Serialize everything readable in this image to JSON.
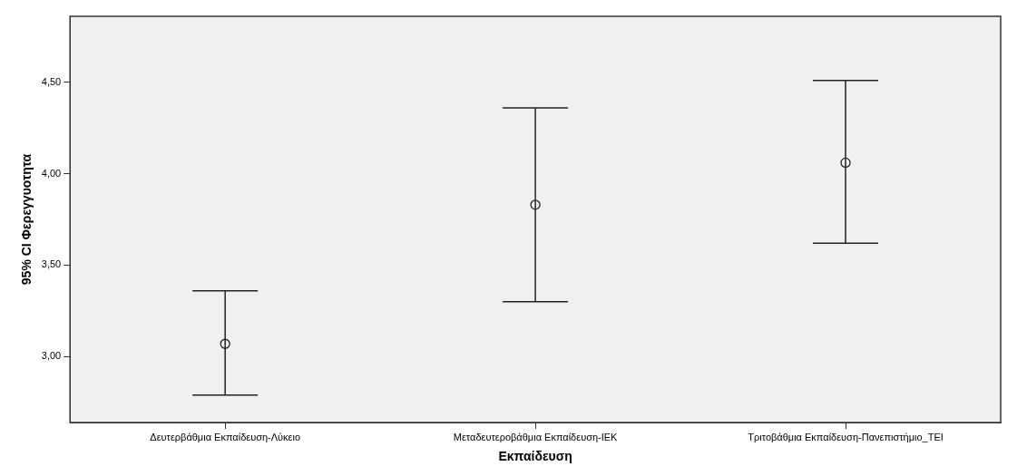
{
  "chart_data": {
    "type": "scatter",
    "xlabel": "Εκπαίδευση",
    "ylabel": "95% CI Φερεγγυοτητα",
    "categories": [
      "Δευτερβάθμια Εκπαίδευση-Λύκειο",
      "Μεταδευτεροβάθμια Εκπαίδευση-ΙΕΚ",
      "Τριτοβάθμια Εκπαίδευση-Πανεπιστήμιο_ΤΕΙ"
    ],
    "values": [
      3.07,
      3.83,
      4.06
    ],
    "errors": [
      [
        2.79,
        3.36
      ],
      [
        3.3,
        4.36
      ],
      [
        3.62,
        4.51
      ]
    ],
    "color": "#222222",
    "marker": "circle",
    "grid": false,
    "legend": false,
    "ylim": [
      2.64,
      4.86
    ],
    "yticks": [
      {
        "value": 3,
        "label": "3,00"
      },
      {
        "value": 3.5,
        "label": "3,50"
      },
      {
        "value": 4,
        "label": "4,00"
      },
      {
        "value": 4.5,
        "label": "4,50"
      }
    ]
  }
}
